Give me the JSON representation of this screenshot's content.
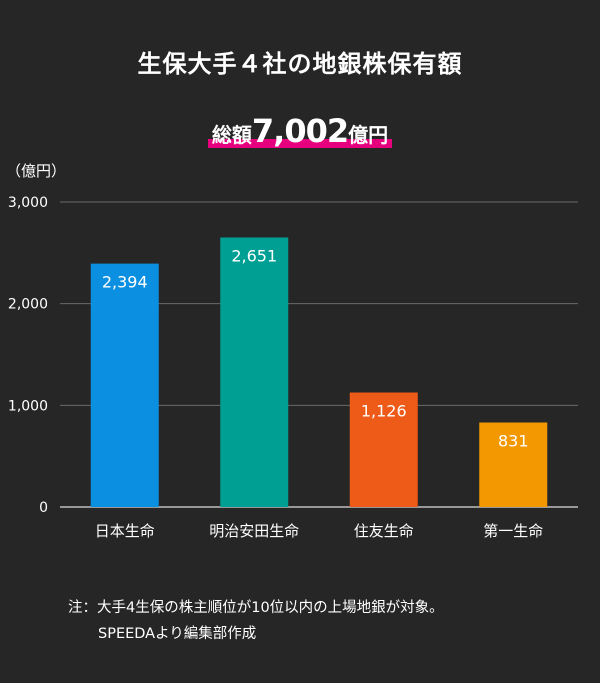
{
  "title": "生保大手４社の地銀株保有額",
  "total": {
    "prefix": "総額",
    "value": "7,002",
    "suffix": "億円",
    "highlight_color": "#e6007e"
  },
  "chart_data": {
    "type": "bar",
    "unit_label": "（億円）",
    "categories": [
      "日本生命",
      "明治安田生命",
      "住友生命",
      "第一生命"
    ],
    "values": [
      2394,
      2651,
      1126,
      831
    ],
    "value_labels": [
      "2,394",
      "2,651",
      "1,126",
      "831"
    ],
    "colors": [
      "#0b8fe0",
      "#009f93",
      "#ee5a17",
      "#f39800"
    ],
    "ylim": [
      0,
      3000
    ],
    "yticks": [
      0,
      1000,
      2000,
      3000
    ],
    "ytick_labels": [
      "0",
      "1,000",
      "2,000",
      "3,000"
    ],
    "grid": true
  },
  "footnotes": [
    "注：大手4生保の株主順位が10位以内の上場地銀が対象。",
    "SPEEDAより編集部作成"
  ]
}
